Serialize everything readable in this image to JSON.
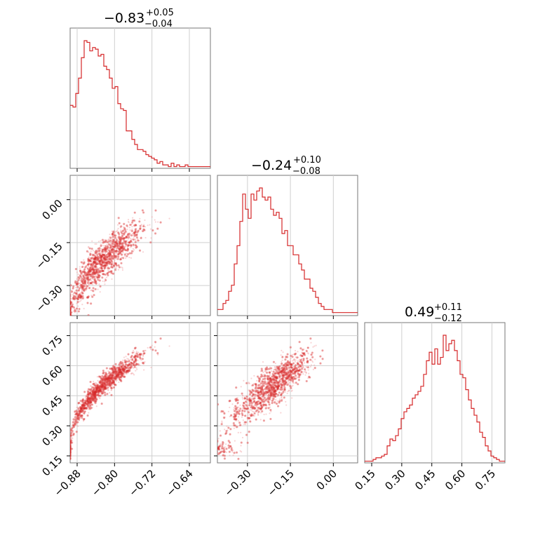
{
  "chart_data": {
    "type": "corner",
    "color": "#d62728",
    "parameters": [
      {
        "title": {
          "median": "−0.83",
          "plus": "+0.05",
          "minus": "−0.04"
        },
        "range": [
          -0.895,
          -0.595
        ],
        "ticks": [
          -0.88,
          -0.8,
          -0.72,
          -0.64
        ],
        "tick_labels": [
          "−0.88",
          "−0.80",
          "−0.72",
          "−0.64"
        ],
        "hist_edges": [
          -0.895,
          -0.595
        ],
        "hist_counts": [
          37,
          36,
          44,
          53,
          65,
          75,
          74,
          69,
          71,
          70,
          66,
          67,
          60,
          58,
          53,
          47,
          48,
          38,
          35,
          34,
          22,
          22,
          17,
          14,
          11,
          11,
          10,
          8,
          7,
          6,
          5,
          3,
          4,
          2,
          2,
          1,
          3,
          1,
          2,
          1,
          1,
          2,
          1,
          1,
          1,
          1,
          1,
          1,
          1,
          1
        ]
      },
      {
        "title": {
          "median": "−0.24",
          "plus": "+0.10",
          "minus": "−0.08"
        },
        "range": [
          -0.405,
          0.085
        ],
        "ticks": [
          -0.3,
          -0.15,
          0.0
        ],
        "tick_labels": [
          "−0.30",
          "−0.15",
          "0.00"
        ],
        "hist_edges": [
          -0.405,
          0.085
        ],
        "hist_counts": [
          2,
          2,
          4,
          5,
          8,
          10,
          17,
          23,
          31,
          40,
          35,
          32,
          40,
          38,
          41,
          42,
          39,
          38,
          39,
          35,
          33,
          34,
          32,
          27,
          28,
          23,
          23,
          20,
          20,
          17,
          15,
          12,
          12,
          9,
          8,
          6,
          4,
          3,
          2,
          2,
          2,
          1,
          1,
          1,
          1,
          1,
          1,
          1,
          1,
          1
        ]
      },
      {
        "title": {
          "median": "0.49",
          "plus": "+0.11",
          "minus": "−0.12"
        },
        "range": [
          0.115,
          0.815
        ],
        "ticks": [
          0.15,
          0.3,
          0.45,
          0.6,
          0.75
        ],
        "tick_labels": [
          "0.15",
          "0.30",
          "0.45",
          "0.60",
          "0.75"
        ],
        "hist_edges": [
          0.115,
          0.815
        ],
        "hist_counts": [
          1,
          1,
          1,
          2,
          3,
          3,
          4,
          5,
          10,
          14,
          13,
          16,
          20,
          26,
          30,
          32,
          34,
          38,
          40,
          42,
          45,
          52,
          60,
          65,
          58,
          67,
          58,
          62,
          75,
          66,
          70,
          72,
          66,
          60,
          52,
          50,
          43,
          37,
          32,
          28,
          24,
          18,
          15,
          10,
          7,
          4,
          3,
          2,
          1,
          1
        ]
      }
    ],
    "pairs": [
      {
        "row": 1,
        "col": 0,
        "relation": "y = -1.6 + 0.78*((x+0.895)/0.3)^0.5*... (curved band)"
      },
      {
        "row": 2,
        "col": 0,
        "relation": "curved band"
      },
      {
        "row": 2,
        "col": 1,
        "relation": "linear band"
      }
    ]
  }
}
